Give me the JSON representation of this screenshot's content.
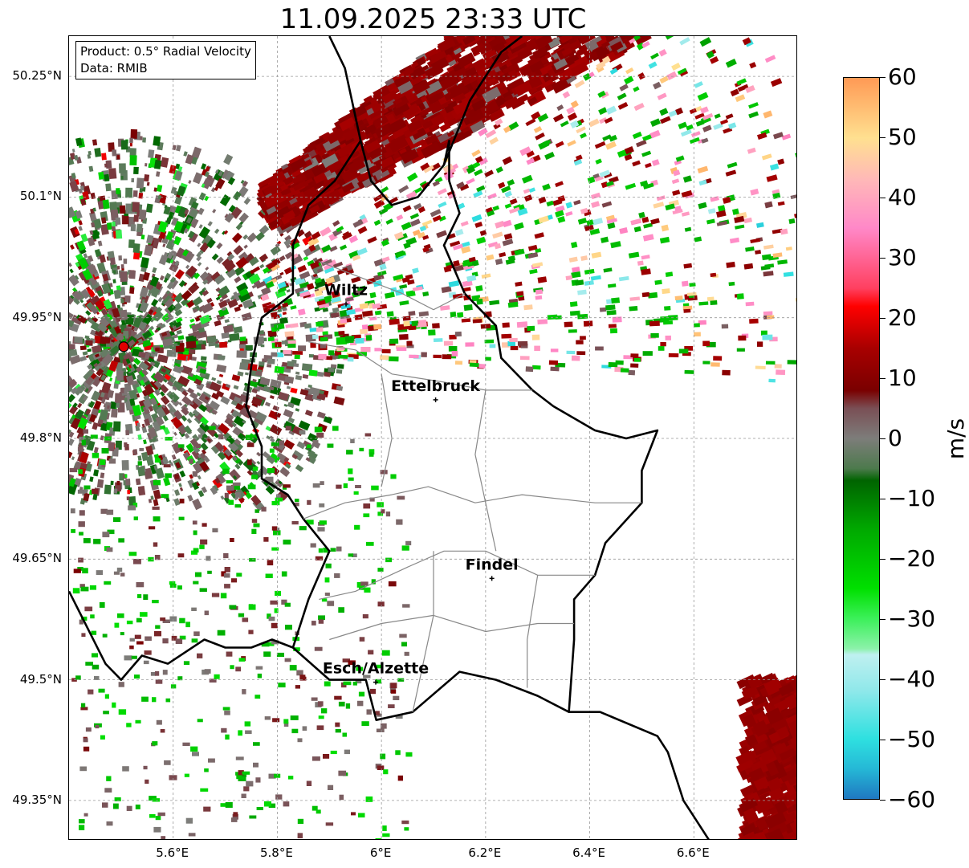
{
  "title": "11.09.2025 23:33 UTC",
  "info": {
    "product": "Product: 0.5° Radial Velocity",
    "data": "Data: RMIB"
  },
  "map": {
    "lon_range": [
      5.4,
      6.8
    ],
    "lat_range": [
      49.3,
      50.3
    ],
    "lat_ticks": [
      "50.25°N",
      "50.1°N",
      "49.95°N",
      "49.8°N",
      "49.65°N",
      "49.5°N",
      "49.35°N"
    ],
    "lon_ticks": [
      "5.6°E",
      "5.8°E",
      "6°E",
      "6.2°E",
      "6.4°E",
      "6.6°E"
    ],
    "radar_site": {
      "lon": 5.505,
      "lat": 49.914,
      "color": "#e00000"
    },
    "cities": [
      {
        "name": "Wiltz",
        "lon": 5.932,
        "lat": 49.967
      },
      {
        "name": "Ettelbruck",
        "lon": 6.104,
        "lat": 49.848
      },
      {
        "name": "Findel",
        "lon": 6.212,
        "lat": 49.626
      },
      {
        "name": "Esch/Alzette",
        "lon": 5.989,
        "lat": 49.497
      }
    ]
  },
  "colorbar": {
    "unit": "m/s",
    "min": -60,
    "max": 60,
    "tick_labels": [
      "60",
      "50",
      "40",
      "30",
      "20",
      "10",
      "0",
      "−10",
      "−20",
      "−30",
      "−40",
      "−50",
      "−60"
    ],
    "stops": [
      {
        "v": -60,
        "c": "#1f78c1"
      },
      {
        "v": -55,
        "c": "#25b8d6"
      },
      {
        "v": -50,
        "c": "#2ee0e0"
      },
      {
        "v": -42,
        "c": "#8fe8ea"
      },
      {
        "v": -36,
        "c": "#bff0f0"
      },
      {
        "v": -35,
        "c": "#8cf2aa"
      },
      {
        "v": -30,
        "c": "#3cf05a"
      },
      {
        "v": -25,
        "c": "#00e000"
      },
      {
        "v": -15,
        "c": "#00a800"
      },
      {
        "v": -7,
        "c": "#006400"
      },
      {
        "v": -5,
        "c": "#4d7a4d"
      },
      {
        "v": 0,
        "c": "#7d7d7a"
      },
      {
        "v": 5,
        "c": "#7a4f55"
      },
      {
        "v": 8,
        "c": "#7a0000"
      },
      {
        "v": 15,
        "c": "#a80000"
      },
      {
        "v": 22,
        "c": "#ff0000"
      },
      {
        "v": 25,
        "c": "#ff4060"
      },
      {
        "v": 35,
        "c": "#ff88c8"
      },
      {
        "v": 43,
        "c": "#ffb8b8"
      },
      {
        "v": 50,
        "c": "#ffe090"
      },
      {
        "v": 60,
        "c": "#ff9a55"
      }
    ]
  },
  "colors": {
    "approach_strong": "#7a0000",
    "zero": "#7d7d7a",
    "recede_green": "#009900"
  }
}
